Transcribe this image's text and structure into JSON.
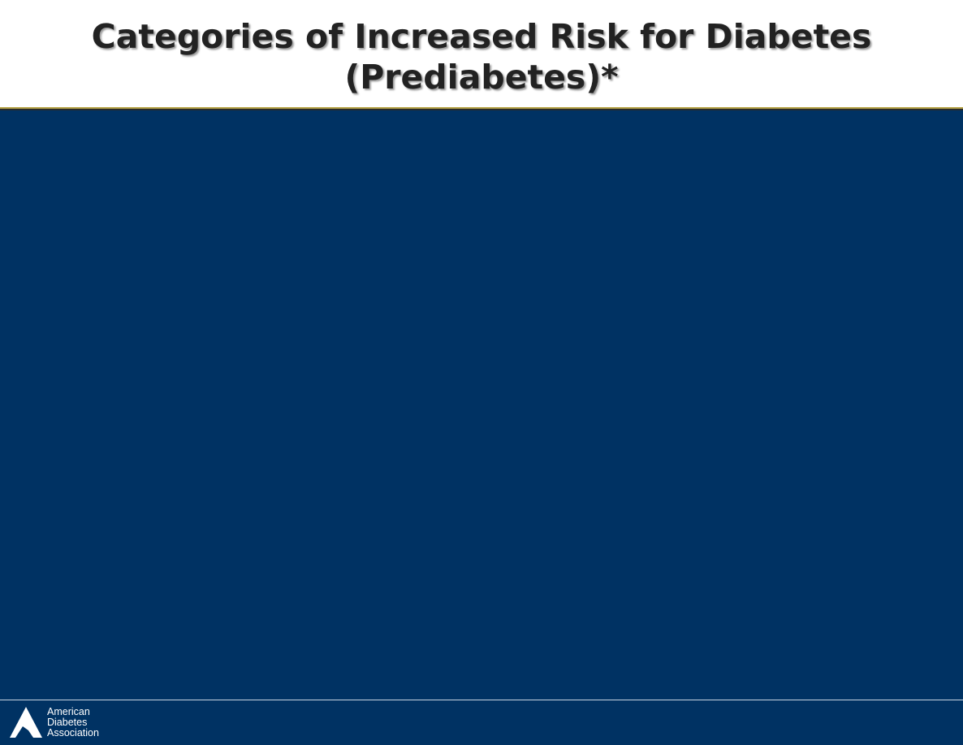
{
  "header": {
    "title_lines": [
      "Categories of Increased Risk for Diabetes",
      "(Prediabetes)*"
    ]
  },
  "footer": {
    "logo_text": [
      "American",
      "Diabetes",
      "Association"
    ]
  }
}
